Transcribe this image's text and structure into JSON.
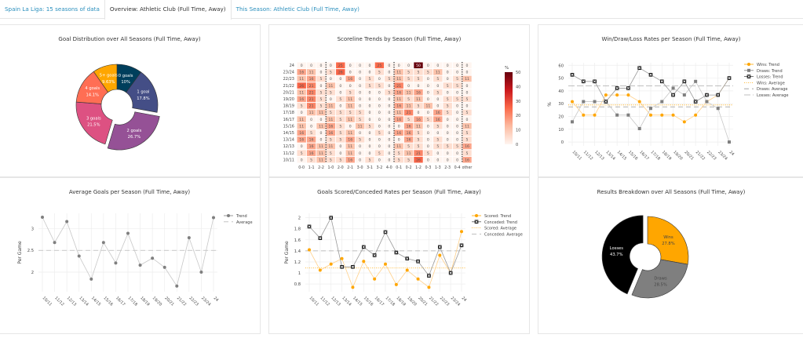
{
  "tabs": [
    {
      "label": "Spain La Liga: 15 seasons of data",
      "active": false
    },
    {
      "label": "Overview: Athletic Club (Full Time, Away)",
      "active": true
    },
    {
      "label": "This Season: Athletic Club (Full Time, Away)",
      "active": false
    }
  ],
  "panels": {
    "goal_dist_title": "Goal Distribution over All Seasons (Full Time, Away)",
    "scoreline_title": "Scoreline Trends by Season (Full Time, Away)",
    "wdl_title": "Win/Draw/Loss Rates per Season (Full Time, Away)",
    "avg_goals_title": "Average Goals per Season (Full Time, Away)",
    "scored_conceded_title": "Goals Scored/Conceded Rates per Season (Full Time, Away)",
    "results_title": "Results Breakdown over All Seasons (Full Time, Away)"
  },
  "chart_data": [
    {
      "id": "goal_distribution",
      "type": "pie",
      "title": "Goal Distribution over All Seasons (Full Time, Away)",
      "donut": true,
      "slices": [
        {
          "label": "0 goals",
          "value": 10,
          "display": "10%",
          "color": "#003f5c"
        },
        {
          "label": "1 goal",
          "value": 17.8,
          "display": "17.8%",
          "color": "#444e86"
        },
        {
          "label": "2 goals",
          "value": 26.7,
          "display": "26.7%",
          "color": "#955196",
          "pulled": true
        },
        {
          "label": "3 goals",
          "value": 21.5,
          "display": "21.5%",
          "color": "#dd5182"
        },
        {
          "label": "4 goals",
          "value": 14.1,
          "display": "14.1%",
          "color": "#ff6e54"
        },
        {
          "label": "5+ goals",
          "value": 9.63,
          "display": "9.63%",
          "color": "#ffa600"
        }
      ]
    },
    {
      "id": "scoreline_trends",
      "type": "heatmap",
      "title": "Scoreline Trends by Season (Full Time, Away)",
      "x": [
        "0-0",
        "1-1",
        "2-2",
        "1-0",
        "2-0",
        "2-1",
        "3-0",
        "3-1",
        "3-2",
        "4-0",
        "0-1",
        "0-2",
        "1-2",
        "0-3",
        "1-3",
        "2-3",
        "0-4",
        "other"
      ],
      "y": [
        "24",
        "23/24",
        "22/23",
        "21/22",
        "20/21",
        "19/20",
        "18/19",
        "17/18",
        "16/17",
        "15/16",
        "14/15",
        "13/14",
        "12/13",
        "11/12",
        "10/11"
      ],
      "values": [
        [
          0,
          0,
          0,
          0,
          25,
          0,
          0,
          0,
          25,
          0,
          0,
          0,
          50,
          0,
          0,
          0,
          0,
          0
        ],
        [
          16,
          11,
          0,
          5,
          26,
          0,
          0,
          0,
          5,
          0,
          11,
          5,
          5,
          5,
          11,
          0,
          0,
          0
        ],
        [
          11,
          16,
          5,
          0,
          0,
          16,
          0,
          5,
          0,
          5,
          11,
          5,
          5,
          0,
          5,
          0,
          5,
          11
        ],
        [
          26,
          21,
          0,
          11,
          0,
          0,
          0,
          5,
          5,
          0,
          21,
          0,
          0,
          0,
          0,
          5,
          5,
          0
        ],
        [
          11,
          21,
          5,
          5,
          0,
          5,
          0,
          0,
          0,
          5,
          16,
          11,
          16,
          0,
          5,
          0,
          0,
          0
        ],
        [
          16,
          21,
          5,
          0,
          5,
          11,
          0,
          0,
          0,
          0,
          11,
          5,
          11,
          0,
          0,
          5,
          5,
          5
        ],
        [
          5,
          21,
          5,
          11,
          0,
          11,
          0,
          0,
          0,
          0,
          16,
          11,
          5,
          11,
          0,
          5,
          0,
          0
        ],
        [
          0,
          11,
          11,
          5,
          5,
          5,
          5,
          0,
          0,
          0,
          11,
          21,
          0,
          0,
          16,
          5,
          0,
          5
        ],
        [
          11,
          0,
          0,
          11,
          5,
          11,
          5,
          0,
          0,
          0,
          16,
          5,
          16,
          5,
          16,
          0,
          0,
          0
        ],
        [
          11,
          0,
          11,
          16,
          5,
          0,
          11,
          5,
          0,
          0,
          0,
          16,
          11,
          0,
          5,
          0,
          0,
          11
        ],
        [
          16,
          5,
          0,
          16,
          5,
          11,
          0,
          0,
          5,
          0,
          16,
          16,
          5,
          0,
          0,
          0,
          0,
          5
        ],
        [
          16,
          16,
          0,
          5,
          5,
          16,
          5,
          0,
          0,
          0,
          0,
          16,
          5,
          0,
          5,
          0,
          0,
          5
        ],
        [
          0,
          16,
          11,
          11,
          0,
          11,
          0,
          0,
          0,
          0,
          11,
          5,
          5,
          0,
          5,
          5,
          5,
          16
        ],
        [
          5,
          16,
          11,
          5,
          0,
          11,
          0,
          0,
          5,
          0,
          5,
          11,
          21,
          5,
          0,
          0,
          0,
          5
        ],
        [
          0,
          5,
          11,
          5,
          5,
          16,
          0,
          5,
          0,
          0,
          5,
          5,
          26,
          0,
          0,
          0,
          0,
          16
        ]
      ],
      "colorbar": {
        "title": "%",
        "ticks": [
          0,
          10,
          20,
          30,
          40,
          50
        ],
        "range": [
          0,
          50
        ]
      }
    },
    {
      "id": "wdl_rates",
      "type": "line",
      "title": "Win/Draw/Loss Rates per Season (Full Time, Away)",
      "ylabel": "%",
      "ylim": [
        -3,
        62
      ],
      "yticks": [
        0,
        10,
        20,
        30,
        40,
        50,
        60
      ],
      "x": [
        "10/11",
        "11/12",
        "12/13",
        "13/14",
        "14/15",
        "15/16",
        "16/17",
        "17/18",
        "18/19",
        "19/20",
        "20/21",
        "21/22",
        "22/23",
        "23/24",
        "24"
      ],
      "series": [
        {
          "name": "Wins: Trend",
          "color": "#ffa600",
          "marker": "circle",
          "values": [
            31.6,
            21.1,
            21.1,
            36.8,
            36.8,
            36.8,
            31.6,
            21.1,
            21.1,
            21.1,
            15.8,
            21.1,
            31.6,
            36.8,
            50
          ]
        },
        {
          "name": "Draws: Trend",
          "color": "#7f7f7f",
          "marker": "square",
          "values": [
            15.8,
            31.6,
            31.6,
            31.6,
            21.1,
            21.1,
            10.5,
            26.3,
            31.6,
            42.1,
            36.8,
            47.4,
            31.6,
            26.3,
            0
          ]
        },
        {
          "name": "Losses: Trend",
          "color": "#000000",
          "marker": "x-square",
          "values": [
            52.6,
            47.4,
            47.4,
            31.6,
            42.1,
            42.1,
            57.9,
            52.6,
            47.4,
            36.8,
            47.4,
            31.6,
            36.8,
            36.8,
            50
          ]
        }
      ],
      "averages": [
        {
          "name": "Wins: Average",
          "color": "#ffa600",
          "style": "dotted",
          "value": 29
        },
        {
          "name": "Draws: Average",
          "color": "#999999",
          "style": "dashed",
          "value": 27.5
        },
        {
          "name": "Losses: Average",
          "color": "#aaaaaa",
          "style": "longdash",
          "value": 44
        }
      ],
      "legend": "top-right"
    },
    {
      "id": "avg_goals",
      "type": "line",
      "title": "Average Goals per Season (Full Time, Away)",
      "ylabel": "Per Game",
      "ylim": [
        1.55,
        3.35
      ],
      "yticks": [
        2,
        2.5,
        3
      ],
      "x": [
        "10/11",
        "11/12",
        "12/13",
        "13/14",
        "14/15",
        "15/16",
        "16/17",
        "17/18",
        "18/19",
        "19/20",
        "20/21",
        "21/22",
        "22/23",
        "23/24",
        "24"
      ],
      "series": [
        {
          "name": "Trend",
          "color": "#7f7f7f",
          "marker": "circle",
          "values": [
            3.26,
            2.68,
            3.16,
            2.37,
            1.84,
            2.68,
            2.21,
            2.89,
            2.16,
            2.32,
            2.11,
            1.68,
            2.79,
            2.0,
            3.25
          ]
        }
      ],
      "averages": [
        {
          "name": "Average",
          "color": "#bbbbbb",
          "style": "dashed",
          "value": 2.5
        }
      ],
      "legend": "top-right"
    },
    {
      "id": "scored_conceded",
      "type": "line",
      "title": "Goals Scored/Conceded Rates per Season (Full Time, Away)",
      "ylabel": "Per Game",
      "ylim": [
        0.66,
        2.08
      ],
      "yticks": [
        0.8,
        1,
        1.2,
        1.4,
        1.6,
        1.8,
        2
      ],
      "x": [
        "10/11",
        "11/12",
        "12/13",
        "13/14",
        "14/15",
        "15/16",
        "16/17",
        "17/18",
        "18/19",
        "19/20",
        "20/21",
        "21/22",
        "22/23",
        "23/24",
        "24"
      ],
      "series": [
        {
          "name": "Scored: Trend",
          "color": "#ffa600",
          "marker": "circle",
          "values": [
            1.42,
            1.05,
            1.16,
            1.26,
            0.74,
            1.21,
            0.89,
            1.16,
            0.79,
            1.05,
            0.89,
            0.74,
            1.32,
            1.0,
            1.75
          ]
        },
        {
          "name": "Conceded: Trend",
          "color": "#000000",
          "marker": "x-square",
          "values": [
            1.84,
            1.63,
            2.0,
            1.11,
            1.11,
            1.47,
            1.32,
            1.74,
            1.37,
            1.26,
            1.21,
            0.95,
            1.47,
            1.0,
            1.5
          ]
        }
      ],
      "averages": [
        {
          "name": "Scored: Average",
          "color": "#ffa600",
          "style": "dotted",
          "value": 1.09
        },
        {
          "name": "Conceded: Average",
          "color": "#aaaaaa",
          "style": "dashed",
          "value": 1.4
        }
      ],
      "legend": "top-right"
    },
    {
      "id": "results_breakdown",
      "type": "pie",
      "title": "Results Breakdown over All Seasons (Full Time, Away)",
      "donut": true,
      "slices": [
        {
          "label": "Wins",
          "value": 27.8,
          "display": "27.8%",
          "color": "#ffa600",
          "text_color": "#444444"
        },
        {
          "label": "Draws",
          "value": 28.5,
          "display": "28.5%",
          "color": "#7f7f7f",
          "text_color": "#444444"
        },
        {
          "label": "Losses",
          "value": 43.7,
          "display": "43.7%",
          "color": "#000000",
          "text_color": "#ffffff",
          "pulled": true
        }
      ]
    }
  ]
}
